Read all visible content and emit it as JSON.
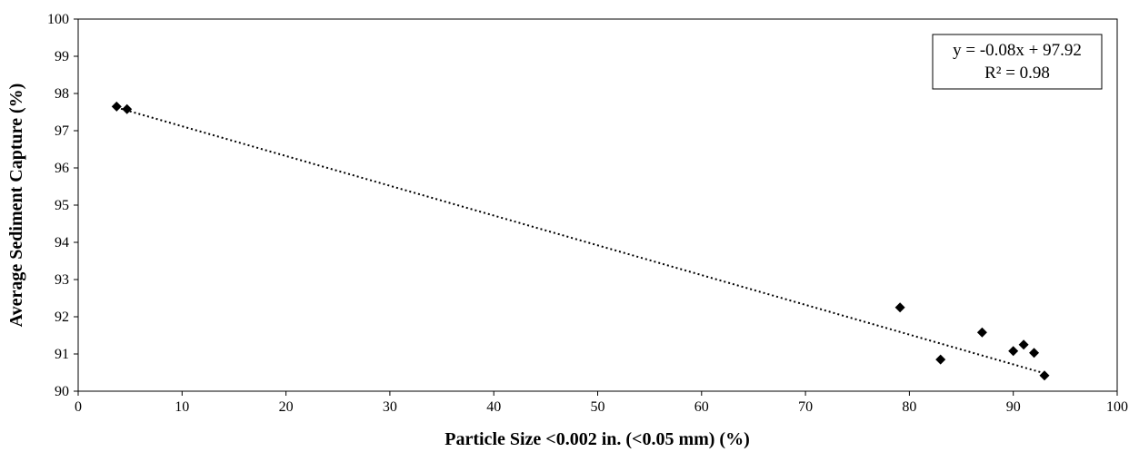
{
  "chart_data": {
    "type": "scatter",
    "title": "",
    "xlabel": "Particle Size <0.002 in. (<0.05 mm) (%)",
    "ylabel": "Average Sediment Capture (%)",
    "xlim": [
      0,
      100
    ],
    "ylim": [
      90,
      100
    ],
    "x_ticks": [
      "0",
      "10",
      "20",
      "30",
      "40",
      "50",
      "60",
      "70",
      "80",
      "90",
      "100"
    ],
    "y_ticks": [
      "90",
      "91",
      "92",
      "93",
      "94",
      "95",
      "96",
      "97",
      "98",
      "99",
      "100"
    ],
    "grid": false,
    "legend": "none",
    "marker": "diamond",
    "marker_color": "#000000",
    "points": [
      {
        "x": 3.7,
        "y": 97.65
      },
      {
        "x": 4.7,
        "y": 97.58
      },
      {
        "x": 79.1,
        "y": 92.25
      },
      {
        "x": 83.0,
        "y": 90.85
      },
      {
        "x": 87.0,
        "y": 91.58
      },
      {
        "x": 90.0,
        "y": 91.08
      },
      {
        "x": 91.0,
        "y": 91.25
      },
      {
        "x": 92.0,
        "y": 91.03
      },
      {
        "x": 93.0,
        "y": 90.42
      }
    ],
    "trendline": {
      "type": "linear",
      "style": "dotted",
      "slope": -0.08,
      "intercept": 97.92,
      "x_range": [
        3.7,
        93.0
      ]
    },
    "annotation": {
      "equation": "y = -0.08x + 97.92",
      "r_squared": "R² = 0.98",
      "placement": "top-right"
    }
  }
}
